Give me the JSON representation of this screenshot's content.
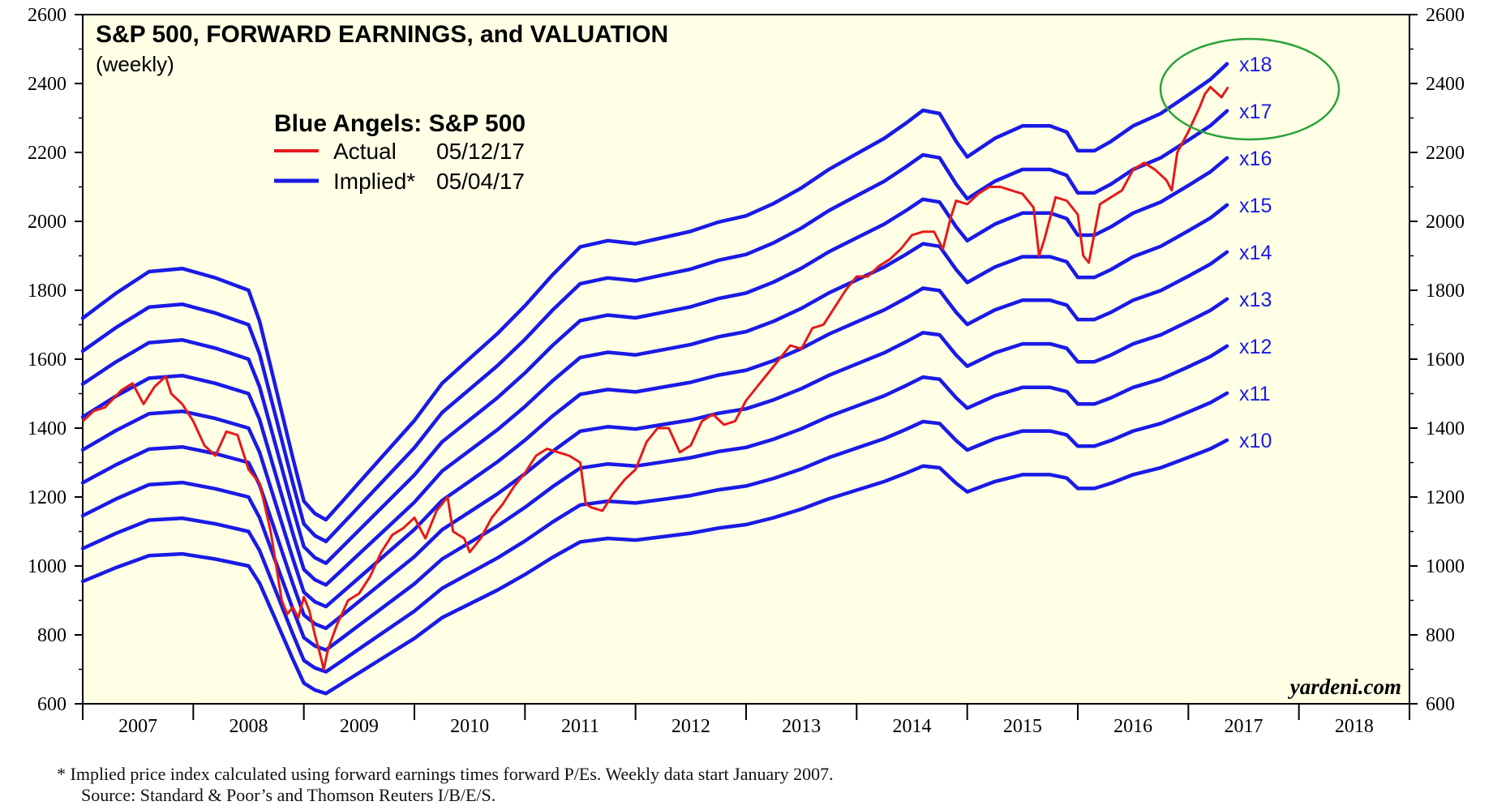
{
  "chart_data": {
    "type": "line",
    "title": "S&P 500, FORWARD EARNINGS, and VALUATION",
    "subtitle": "(weekly)",
    "legend_title": "Blue Angels: S&P 500",
    "legend": [
      {
        "name": "Actual",
        "date": "05/12/17",
        "color": "#e41a1a"
      },
      {
        "name": "Implied*",
        "date": "05/04/17",
        "color": "#1a1ae6"
      }
    ],
    "watermark": "yardeni.com",
    "x_range": [
      2007.0,
      2019.0
    ],
    "y_range": [
      600,
      2600
    ],
    "y_ticks": [
      600,
      800,
      1000,
      1200,
      1400,
      1600,
      1800,
      2000,
      2200,
      2400,
      2600
    ],
    "x_tick_labels": [
      "2007",
      "2008",
      "2009",
      "2010",
      "2011",
      "2012",
      "2013",
      "2014",
      "2015",
      "2016",
      "2017",
      "2018"
    ],
    "grid": false,
    "forward_earnings_base": {
      "x": [
        2007.0,
        2007.3,
        2007.6,
        2007.9,
        2008.2,
        2008.5,
        2008.6,
        2008.75,
        2008.9,
        2009.0,
        2009.1,
        2009.2,
        2009.35,
        2009.5,
        2009.75,
        2010.0,
        2010.25,
        2010.5,
        2010.75,
        2011.0,
        2011.25,
        2011.5,
        2011.75,
        2012.0,
        2012.25,
        2012.5,
        2012.75,
        2013.0,
        2013.25,
        2013.5,
        2013.75,
        2014.0,
        2014.25,
        2014.45,
        2014.6,
        2014.75,
        2014.9,
        2015.0,
        2015.25,
        2015.5,
        2015.75,
        2015.9,
        2016.0,
        2016.15,
        2016.3,
        2016.5,
        2016.75,
        2017.0,
        2017.2,
        2017.35
      ],
      "y": [
        95.5,
        99.5,
        103.0,
        103.5,
        102.0,
        100.0,
        95.0,
        84.0,
        73.0,
        66.0,
        64.0,
        63.0,
        66.0,
        69.0,
        74.0,
        79.0,
        85.0,
        89.0,
        93.0,
        97.5,
        102.5,
        107.0,
        108.0,
        107.5,
        108.5,
        109.5,
        111.0,
        112.0,
        114.0,
        116.5,
        119.5,
        122.0,
        124.5,
        127.0,
        129.0,
        128.5,
        124.0,
        121.5,
        124.5,
        126.5,
        126.5,
        125.5,
        122.5,
        122.5,
        124.0,
        126.5,
        128.5,
        131.5,
        134.0,
        136.5
      ]
    },
    "series": [
      {
        "name": "x10",
        "multiple": 10,
        "color": "#1a1ae6"
      },
      {
        "name": "x11",
        "multiple": 11,
        "color": "#1a1ae6"
      },
      {
        "name": "x12",
        "multiple": 12,
        "color": "#1a1ae6"
      },
      {
        "name": "x13",
        "multiple": 13,
        "color": "#1a1ae6"
      },
      {
        "name": "x14",
        "multiple": 14,
        "color": "#1a1ae6"
      },
      {
        "name": "x15",
        "multiple": 15,
        "color": "#1a1ae6"
      },
      {
        "name": "x16",
        "multiple": 16,
        "color": "#1a1ae6"
      },
      {
        "name": "x17",
        "multiple": 17,
        "color": "#1a1ae6"
      },
      {
        "name": "x18",
        "multiple": 18,
        "color": "#1a1ae6"
      }
    ],
    "actual": {
      "name": "Actual",
      "color": "#e41a1a",
      "x": [
        2007.0,
        2007.1,
        2007.2,
        2007.35,
        2007.45,
        2007.55,
        2007.65,
        2007.75,
        2007.8,
        2007.9,
        2008.0,
        2008.1,
        2008.2,
        2008.3,
        2008.4,
        2008.5,
        2008.55,
        2008.6,
        2008.65,
        2008.7,
        2008.75,
        2008.8,
        2008.85,
        2008.9,
        2008.95,
        2009.0,
        2009.05,
        2009.1,
        2009.15,
        2009.18,
        2009.22,
        2009.3,
        2009.4,
        2009.5,
        2009.6,
        2009.7,
        2009.8,
        2009.9,
        2010.0,
        2010.1,
        2010.2,
        2010.3,
        2010.35,
        2010.45,
        2010.5,
        2010.6,
        2010.7,
        2010.8,
        2010.9,
        2011.0,
        2011.1,
        2011.2,
        2011.3,
        2011.4,
        2011.5,
        2011.55,
        2011.6,
        2011.7,
        2011.8,
        2011.9,
        2012.0,
        2012.1,
        2012.2,
        2012.3,
        2012.4,
        2012.5,
        2012.6,
        2012.7,
        2012.8,
        2012.9,
        2013.0,
        2013.1,
        2013.2,
        2013.3,
        2013.4,
        2013.5,
        2013.6,
        2013.7,
        2013.8,
        2013.9,
        2014.0,
        2014.1,
        2014.2,
        2014.3,
        2014.4,
        2014.5,
        2014.6,
        2014.7,
        2014.78,
        2014.85,
        2014.9,
        2015.0,
        2015.1,
        2015.2,
        2015.3,
        2015.4,
        2015.5,
        2015.6,
        2015.65,
        2015.7,
        2015.8,
        2015.9,
        2016.0,
        2016.05,
        2016.1,
        2016.2,
        2016.3,
        2016.4,
        2016.5,
        2016.6,
        2016.7,
        2016.8,
        2016.85,
        2016.9,
        2017.0,
        2017.1,
        2017.15,
        2017.2,
        2017.3,
        2017.36
      ],
      "y": [
        1420,
        1450,
        1460,
        1510,
        1530,
        1470,
        1520,
        1550,
        1500,
        1470,
        1420,
        1350,
        1320,
        1390,
        1380,
        1280,
        1260,
        1240,
        1170,
        1100,
        1000,
        900,
        860,
        880,
        850,
        910,
        870,
        800,
        740,
        700,
        760,
        830,
        900,
        920,
        970,
        1040,
        1090,
        1110,
        1140,
        1080,
        1160,
        1200,
        1100,
        1080,
        1040,
        1080,
        1140,
        1180,
        1230,
        1270,
        1320,
        1340,
        1330,
        1320,
        1300,
        1180,
        1170,
        1160,
        1210,
        1250,
        1280,
        1360,
        1400,
        1400,
        1330,
        1350,
        1420,
        1440,
        1410,
        1420,
        1480,
        1520,
        1560,
        1600,
        1640,
        1630,
        1690,
        1700,
        1750,
        1800,
        1840,
        1840,
        1870,
        1890,
        1920,
        1960,
        1970,
        1970,
        1920,
        2010,
        2060,
        2050,
        2080,
        2100,
        2100,
        2090,
        2080,
        2040,
        1900,
        1950,
        2070,
        2060,
        2020,
        1900,
        1880,
        2050,
        2070,
        2090,
        2150,
        2170,
        2150,
        2120,
        2090,
        2200,
        2260,
        2330,
        2370,
        2390,
        2360,
        2390
      ]
    },
    "line_labels": [
      "x10",
      "x11",
      "x12",
      "x13",
      "x14",
      "x15",
      "x16",
      "x17",
      "x18"
    ],
    "highlight": "green ellipse around x17-x18 region at 2017"
  },
  "footnote": {
    "line1": "*  Implied price index calculated using forward earnings times forward P/Es. Weekly data start January 2007.",
    "line2": "Source: Standard & Poor’s and Thomson Reuters I/B/E/S."
  },
  "colors": {
    "plot_bg": "#ffffe6",
    "implied": "#1a1ae6",
    "actual": "#e41a1a",
    "highlight": "#2aa33a",
    "label": "#1a1ae6"
  }
}
